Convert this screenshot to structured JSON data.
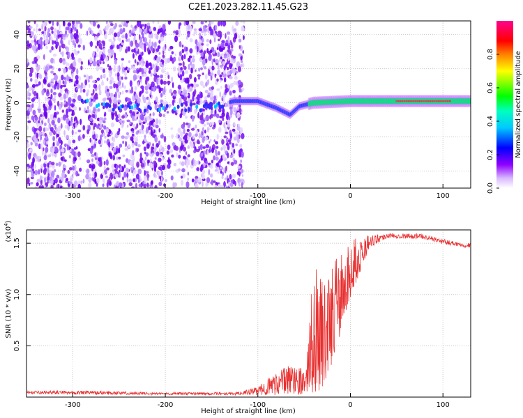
{
  "chart_data": [
    {
      "type": "heatmap",
      "title": "C2E1.2023.282.11.45.G23",
      "xlabel": "Height of straight line (km)",
      "ylabel": "Frequency (Hz)",
      "xlim": [
        -350,
        130
      ],
      "ylim": [
        -50,
        48
      ],
      "xticks": [
        -300,
        -200,
        -100,
        0,
        100
      ],
      "yticks": [
        -40,
        -20,
        0,
        20,
        40
      ],
      "grid": true,
      "colorbar": {
        "label": "Normalized spectral amplitude",
        "range": [
          0.0,
          1.0
        ],
        "ticks": [
          "0.0",
          "0.2",
          "0.4",
          "0.6",
          "0.8"
        ],
        "colormap": [
          "#ffffff",
          "#a000ff",
          "#0000ff",
          "#00ffff",
          "#00ff00",
          "#ffff00",
          "#ff0000",
          "#ff00a0"
        ]
      },
      "centerline_freq_hz": [
        {
          "x": -280,
          "y": -2
        },
        {
          "x": -230,
          "y": -3
        },
        {
          "x": -160,
          "y": -3
        },
        {
          "x": -125,
          "y": 1
        },
        {
          "x": -100,
          "y": 1
        },
        {
          "x": -80,
          "y": -3
        },
        {
          "x": -65,
          "y": -7
        },
        {
          "x": -55,
          "y": -2
        },
        {
          "x": -40,
          "y": 0
        },
        {
          "x": 0,
          "y": 1
        },
        {
          "x": 60,
          "y": 1
        },
        {
          "x": 130,
          "y": 1
        }
      ]
    },
    {
      "type": "line",
      "xlabel": "Height of straight line (km)",
      "ylabel": "SNR (10 * v/v)",
      "multiplier": "(x10",
      "multiplier_exp": "4",
      "multiplier_close": ")",
      "xlim": [
        -350,
        130
      ],
      "ylim": [
        0,
        16300
      ],
      "xticks": [
        -300,
        -200,
        -100,
        0,
        100
      ],
      "yticks": [
        {
          "value": 5000,
          "label": "0.5"
        },
        {
          "value": 10000,
          "label": "1.0"
        },
        {
          "value": 15000,
          "label": "1.5"
        }
      ],
      "grid": true,
      "color": "#e83030",
      "envelope": [
        {
          "x": -350,
          "lo": 300,
          "hi": 600
        },
        {
          "x": -270,
          "lo": 250,
          "hi": 600
        },
        {
          "x": -200,
          "lo": 200,
          "hi": 450
        },
        {
          "x": -120,
          "lo": 200,
          "hi": 500
        },
        {
          "x": -100,
          "lo": 200,
          "hi": 1000
        },
        {
          "x": -80,
          "lo": 200,
          "hi": 2500
        },
        {
          "x": -60,
          "lo": 200,
          "hi": 3500
        },
        {
          "x": -48,
          "lo": 300,
          "hi": 2500
        },
        {
          "x": -40,
          "lo": 400,
          "hi": 13000
        },
        {
          "x": -30,
          "lo": 500,
          "hi": 12500
        },
        {
          "x": -20,
          "lo": 2000,
          "hi": 13000
        },
        {
          "x": -10,
          "lo": 6500,
          "hi": 14000
        },
        {
          "x": 0,
          "lo": 9500,
          "hi": 15500
        },
        {
          "x": 20,
          "lo": 14500,
          "hi": 15800
        },
        {
          "x": 40,
          "lo": 15500,
          "hi": 16000
        },
        {
          "x": 80,
          "lo": 15400,
          "hi": 15900
        },
        {
          "x": 100,
          "lo": 14900,
          "hi": 15400
        },
        {
          "x": 130,
          "lo": 14500,
          "hi": 15000
        }
      ]
    }
  ]
}
